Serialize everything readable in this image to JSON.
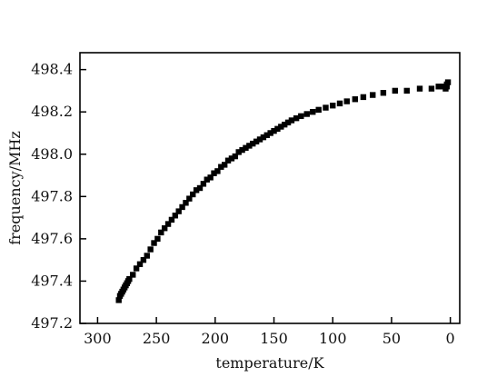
{
  "chart_data": {
    "type": "scatter",
    "xlabel": "temperature/K",
    "ylabel": "frequency/MHz",
    "xlim": [
      315,
      -8
    ],
    "ylim": [
      497.2,
      498.48
    ],
    "x_reversed": true,
    "grid": false,
    "xticks": [
      300,
      250,
      200,
      150,
      100,
      50,
      0
    ],
    "xtick_labels": [
      "300",
      "250",
      "200",
      "150",
      "100",
      "50",
      "0"
    ],
    "yticks": [
      497.2,
      497.4,
      497.6,
      497.8,
      498.0,
      498.2,
      498.4
    ],
    "ytick_labels": [
      "497.2",
      "497.4",
      "497.6",
      "497.8",
      "498.0",
      "498.2",
      "498.4"
    ],
    "series": [
      {
        "marker": "square",
        "color": "#000000",
        "points": [
          [
            282,
            497.31
          ],
          [
            281,
            497.33
          ],
          [
            280,
            497.34
          ],
          [
            279,
            497.35
          ],
          [
            278,
            497.36
          ],
          [
            277,
            497.37
          ],
          [
            276,
            497.38
          ],
          [
            275,
            497.39
          ],
          [
            274,
            497.4
          ],
          [
            273,
            497.41
          ],
          [
            270,
            497.43
          ],
          [
            267,
            497.46
          ],
          [
            264,
            497.48
          ],
          [
            261,
            497.5
          ],
          [
            258,
            497.52
          ],
          [
            255,
            497.55
          ],
          [
            252,
            497.58
          ],
          [
            249,
            497.6
          ],
          [
            246,
            497.63
          ],
          [
            243,
            497.65
          ],
          [
            240,
            497.67
          ],
          [
            237,
            497.69
          ],
          [
            234,
            497.71
          ],
          [
            231,
            497.73
          ],
          [
            228,
            497.75
          ],
          [
            225,
            497.77
          ],
          [
            222,
            497.79
          ],
          [
            219,
            497.81
          ],
          [
            216,
            497.83
          ],
          [
            213,
            497.84
          ],
          [
            210,
            497.86
          ],
          [
            207,
            497.88
          ],
          [
            204,
            497.89
          ],
          [
            201,
            497.91
          ],
          [
            198,
            497.92
          ],
          [
            195,
            497.94
          ],
          [
            192,
            497.95
          ],
          [
            189,
            497.97
          ],
          [
            186,
            497.98
          ],
          [
            183,
            497.99
          ],
          [
            180,
            498.01
          ],
          [
            177,
            498.02
          ],
          [
            174,
            498.03
          ],
          [
            171,
            498.04
          ],
          [
            168,
            498.05
          ],
          [
            165,
            498.06
          ],
          [
            162,
            498.07
          ],
          [
            159,
            498.08
          ],
          [
            156,
            498.09
          ],
          [
            153,
            498.1
          ],
          [
            150,
            498.11
          ],
          [
            147,
            498.12
          ],
          [
            144,
            498.13
          ],
          [
            141,
            498.14
          ],
          [
            138,
            498.15
          ],
          [
            135,
            498.16
          ],
          [
            131,
            498.17
          ],
          [
            127,
            498.18
          ],
          [
            122,
            498.19
          ],
          [
            117,
            498.2
          ],
          [
            112,
            498.21
          ],
          [
            106,
            498.22
          ],
          [
            100,
            498.23
          ],
          [
            94,
            498.24
          ],
          [
            88,
            498.25
          ],
          [
            81,
            498.26
          ],
          [
            74,
            498.27
          ],
          [
            66,
            498.28
          ],
          [
            57,
            498.29
          ],
          [
            47,
            498.3
          ],
          [
            37,
            498.3
          ],
          [
            26,
            498.31
          ],
          [
            16,
            498.31
          ],
          [
            10,
            498.32
          ],
          [
            6,
            498.32
          ],
          [
            4,
            498.32
          ],
          [
            3,
            498.33
          ],
          [
            2,
            498.34
          ],
          [
            4,
            498.31
          ],
          [
            3,
            498.32
          ]
        ]
      }
    ]
  }
}
